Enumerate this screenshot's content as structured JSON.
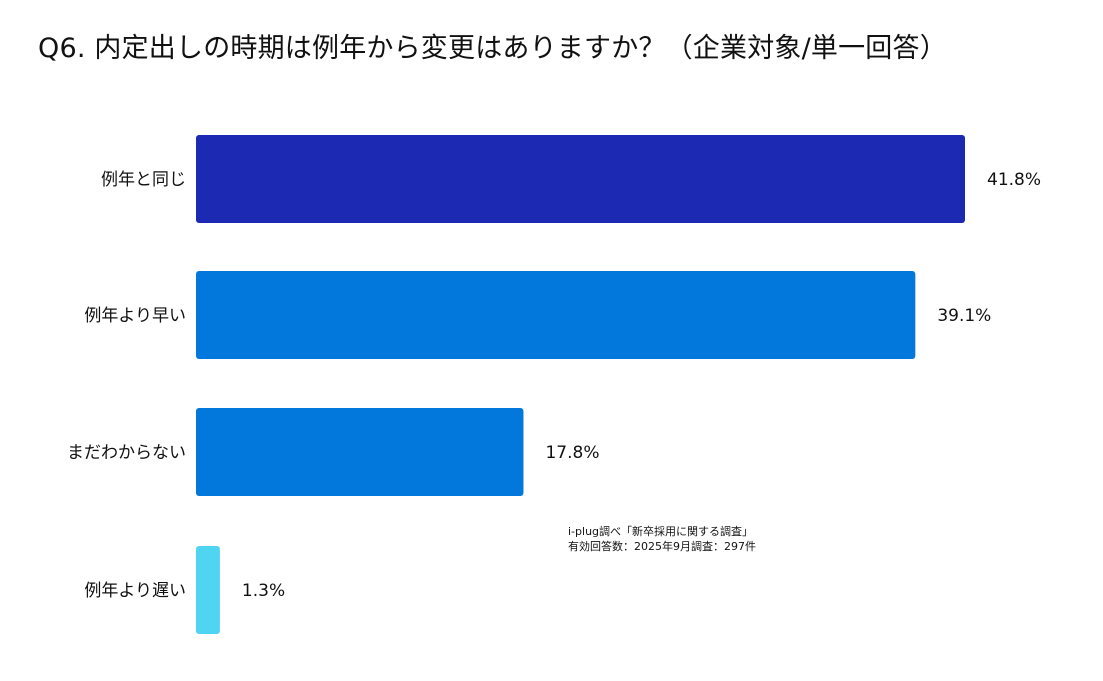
{
  "chart_data": {
    "type": "bar",
    "orientation": "horizontal",
    "title": "Q6. 内定出しの時期は例年から変更はありますか？（企業対象/単一回答）",
    "categories": [
      "例年と同じ",
      "例年より早い",
      "まだわからない",
      "例年より遅い"
    ],
    "values": [
      41.8,
      39.1,
      17.8,
      1.3
    ],
    "value_labels": [
      "41.8%",
      "39.1%",
      "17.8%",
      "1.3%"
    ],
    "colors": [
      "#1b29b3",
      "#0278dc",
      "#0278dc",
      "#4fd4f2"
    ],
    "xlim": [
      0,
      41.8
    ],
    "xlabel": "",
    "ylabel": "",
    "grid": false,
    "legend": "none"
  },
  "source_note": {
    "line1": "i-plug調べ「新卒採用に関する調査」",
    "line2": "有効回答数：2025年9月調査：297件"
  }
}
